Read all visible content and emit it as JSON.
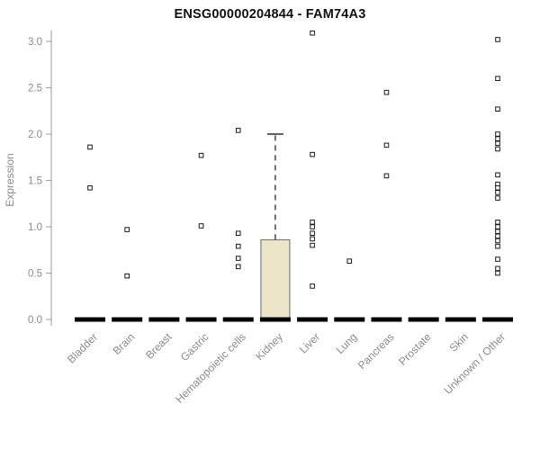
{
  "chart_data": {
    "type": "boxplot",
    "title": "ENSG00000204844 - FAM74A3",
    "ylabel": "Expression",
    "ylim": [
      0,
      3.0
    ],
    "yticks": [
      0.0,
      0.5,
      1.0,
      1.5,
      2.0,
      2.5,
      3.0
    ],
    "ytick_labels": [
      "0.0",
      "0.5",
      "1.0",
      "1.5",
      "2.0",
      "2.5",
      "3.0"
    ],
    "grid": false,
    "legend": "none",
    "categories": [
      "Bladder",
      "Brain",
      "Breast",
      "Gastric",
      "Hematopoietic cells",
      "Kidney",
      "Liver",
      "Lung",
      "Pancreas",
      "Prostate",
      "Skin",
      "Unknown / Other"
    ],
    "boxes": [
      {
        "category": "Bladder",
        "q1": 0,
        "median": 0,
        "q3": 0,
        "whisker_low": 0,
        "whisker_high": 0,
        "outliers": [
          1.86,
          1.42
        ]
      },
      {
        "category": "Brain",
        "q1": 0,
        "median": 0,
        "q3": 0,
        "whisker_low": 0,
        "whisker_high": 0,
        "outliers": [
          0.97,
          0.47
        ]
      },
      {
        "category": "Breast",
        "q1": 0,
        "median": 0,
        "q3": 0,
        "whisker_low": 0,
        "whisker_high": 0,
        "outliers": []
      },
      {
        "category": "Gastric",
        "q1": 0,
        "median": 0,
        "q3": 0,
        "whisker_low": 0,
        "whisker_high": 0,
        "outliers": [
          1.77,
          1.01
        ]
      },
      {
        "category": "Hematopoietic cells",
        "q1": 0,
        "median": 0,
        "q3": 0,
        "whisker_low": 0,
        "whisker_high": 0,
        "outliers": [
          2.04,
          0.93,
          0.79,
          0.66,
          0.57
        ]
      },
      {
        "category": "Kidney",
        "q1": 0,
        "median": 0,
        "q3": 0.86,
        "whisker_low": 0,
        "whisker_high": 2.0,
        "outliers": []
      },
      {
        "category": "Liver",
        "q1": 0,
        "median": 0,
        "q3": 0,
        "whisker_low": 0,
        "whisker_high": 0,
        "outliers": [
          3.09,
          1.78,
          1.05,
          1.0,
          0.93,
          0.87,
          0.8,
          0.36
        ]
      },
      {
        "category": "Lung",
        "q1": 0,
        "median": 0,
        "q3": 0,
        "whisker_low": 0,
        "whisker_high": 0,
        "outliers": [
          0.63
        ]
      },
      {
        "category": "Pancreas",
        "q1": 0,
        "median": 0,
        "q3": 0,
        "whisker_low": 0,
        "whisker_high": 0,
        "outliers": [
          2.45,
          1.88,
          1.55
        ]
      },
      {
        "category": "Prostate",
        "q1": 0,
        "median": 0,
        "q3": 0,
        "whisker_low": 0,
        "whisker_high": 0,
        "outliers": []
      },
      {
        "category": "Skin",
        "q1": 0,
        "median": 0,
        "q3": 0,
        "whisker_low": 0,
        "whisker_high": 0,
        "outliers": []
      },
      {
        "category": "Unknown / Other",
        "q1": 0,
        "median": 0,
        "q3": 0,
        "whisker_low": 0,
        "whisker_high": 0,
        "outliers": [
          3.02,
          2.6,
          2.27,
          2.0,
          1.95,
          1.9,
          1.84,
          1.56,
          1.46,
          1.42,
          1.37,
          1.31,
          1.05,
          1.0,
          0.95,
          0.9,
          0.85,
          0.79,
          0.65,
          0.55,
          0.5
        ]
      }
    ],
    "colors": {
      "box_fill": "#ece5c8",
      "box_stroke": "#6b6b6b",
      "zero_bar": "#000000",
      "whisker": "#2b2b2b",
      "outlier_stroke": "#1a1a1a",
      "outlier_fill": "#ffffff",
      "axis": "#9c9c9c",
      "tick_text": "#8a8a8a",
      "title_text": "#111111"
    }
  }
}
